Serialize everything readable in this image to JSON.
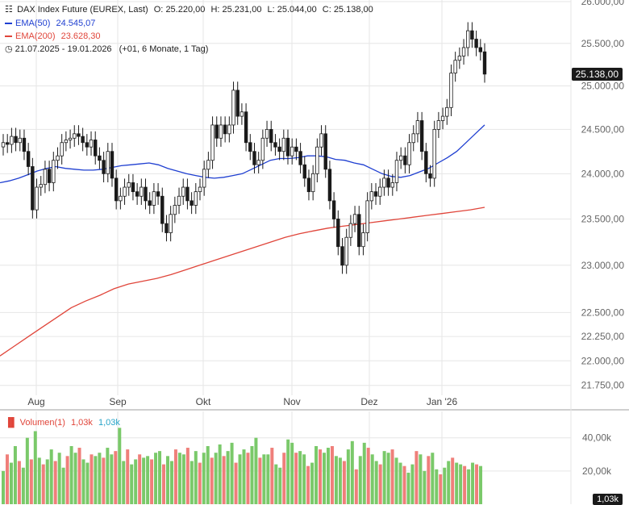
{
  "header": {
    "title": "DAX Index Future (EUREX, Last)",
    "ohlc": [
      {
        "k": "O:",
        "v": "25.220,00"
      },
      {
        "k": "H:",
        "v": "25.231,00"
      },
      {
        "k": "L:",
        "v": "25.044,00"
      },
      {
        "k": "C:",
        "v": "25.138,00"
      }
    ],
    "ema50_label": "EMA(50)",
    "ema50_value": "24.545,07",
    "ema200_label": "EMA(200)",
    "ema200_value": "23.628,30",
    "range": "21.07.2025 - 19.01.2026",
    "range_note": "(+01, 6 Monate, 1 Tag)",
    "last_price_tag": "25.138,00"
  },
  "volume_legend": {
    "label": "Volumen(1)",
    "value_red": "1,03k",
    "value_blue": "1,03k",
    "last_tag": "1,03k"
  },
  "colors": {
    "up": "#1a1a1a",
    "ema50": "#1f3fd1",
    "ema200": "#e0453a",
    "vol_up": "#7ac96a",
    "vol_down": "#ef7f7a",
    "grid": "#e6e6e6"
  },
  "chart_data": [
    {
      "type": "candlestick",
      "title": "DAX Index Future (EUREX, Last)",
      "x_ticks": [
        "Aug",
        "Sep",
        "Okt",
        "Nov",
        "Dez",
        "Jan '26"
      ],
      "y_ticks": [
        "26.000,00",
        "25.500,00",
        "25.000,00",
        "24.500,00",
        "24.000,00",
        "23.500,00",
        "23.000,00",
        "22.500,00",
        "22.250,00",
        "22.000,00",
        "21.750,00"
      ],
      "y_tick_values": [
        26000,
        25500,
        25000,
        24500,
        24000,
        23500,
        23000,
        22500,
        22250,
        22000,
        21750
      ],
      "scale": "log",
      "ylim": [
        21650,
        26000
      ],
      "ohlc_dates": [
        "21.07.2025",
        "19.01.2026"
      ],
      "closes": [
        24350,
        24330,
        24420,
        24350,
        24400,
        24250,
        24080,
        23600,
        23850,
        23880,
        24050,
        23900,
        24150,
        24200,
        24350,
        24380,
        24400,
        24450,
        24420,
        24350,
        24300,
        24380,
        24200,
        24150,
        24000,
        24250,
        23950,
        23700,
        23750,
        23850,
        23900,
        23800,
        23750,
        23850,
        23700,
        23650,
        23800,
        23750,
        23450,
        23350,
        23550,
        23650,
        23750,
        23850,
        23700,
        23650,
        23800,
        23850,
        24050,
        24150,
        24550,
        24400,
        24550,
        24450,
        24550,
        24950,
        24650,
        24700,
        24350,
        24250,
        24100,
        24150,
        24400,
        24500,
        24350,
        24300,
        24250,
        24400,
        24200,
        24300,
        24250,
        24100,
        23950,
        23800,
        24000,
        24300,
        24450,
        24050,
        23700,
        23500,
        23200,
        23000,
        23300,
        23450,
        23550,
        23200,
        23350,
        23700,
        23800,
        23750,
        23850,
        23950,
        23850,
        23900,
        24150,
        24200,
        24100,
        24350,
        24450,
        24600,
        24250,
        24000,
        23950,
        24500,
        24600,
        24650,
        24750,
        25150,
        25300,
        25350,
        25450,
        25650,
        25550,
        25450,
        25400,
        25138
      ],
      "ema50": [
        23900,
        23920,
        23950,
        23990,
        24030,
        24060,
        24080,
        24060,
        24050,
        24040,
        24040,
        24050,
        24070,
        24090,
        24100,
        24110,
        24120,
        24100,
        24060,
        24030,
        24000,
        23980,
        23960,
        23950,
        23960,
        23980,
        24000,
        24050,
        24100,
        24150,
        24170,
        24170,
        24180,
        24200,
        24200,
        24190,
        24160,
        24150,
        24120,
        24100,
        24050,
        24000,
        23970,
        23960,
        23980,
        24020,
        24060,
        24120,
        24180,
        24250,
        24350,
        24450,
        24550
      ],
      "ema200": [
        22050,
        22150,
        22250,
        22350,
        22450,
        22550,
        22620,
        22680,
        22750,
        22800,
        22830,
        22860,
        22900,
        22950,
        23000,
        23050,
        23100,
        23150,
        23200,
        23250,
        23300,
        23340,
        23370,
        23400,
        23420,
        23440,
        23460,
        23480,
        23500,
        23520,
        23540,
        23560,
        23580,
        23600,
        23628
      ],
      "volume_ticks": [
        "40,00k",
        "20,00k"
      ],
      "volume_tick_values": [
        40000,
        20000
      ],
      "volume_k": [
        20,
        30,
        25,
        35,
        26,
        22,
        40,
        27,
        44,
        28,
        24,
        27,
        33,
        26,
        31,
        22,
        29,
        35,
        31,
        34,
        27,
        25,
        30,
        29,
        31,
        28,
        34,
        30,
        32,
        46,
        26,
        33,
        24,
        27,
        30,
        28,
        29,
        27,
        31,
        32,
        24,
        29,
        26,
        33,
        31,
        30,
        34,
        26,
        32,
        25,
        31,
        35,
        28,
        31,
        36,
        29,
        32,
        37,
        25,
        30,
        33,
        31,
        35,
        40,
        28,
        30,
        30,
        34,
        24,
        22,
        31,
        39,
        37,
        31,
        32,
        30,
        23,
        25,
        35,
        33,
        31,
        34,
        35,
        29,
        28,
        26,
        33,
        38,
        21,
        29,
        37,
        34,
        30,
        26,
        24,
        32,
        31,
        33,
        28,
        25,
        23,
        19,
        24,
        32,
        30,
        20,
        29,
        31,
        21,
        18,
        22,
        26,
        28,
        25,
        24,
        23,
        21,
        25,
        24,
        23,
        0
      ]
    }
  ]
}
